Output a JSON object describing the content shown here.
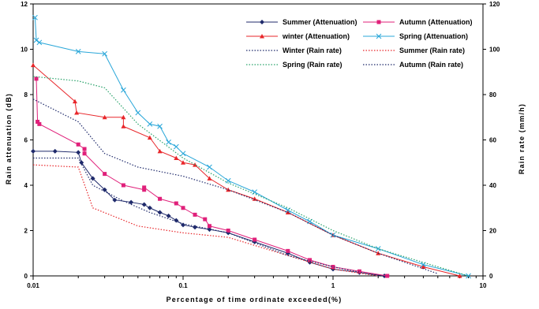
{
  "chart_data": {
    "type": "line",
    "xscale": "log",
    "xlabel": "Percentage of time ordinate exceeded(%)",
    "ylabel_left": "Rain attenuation (dB)",
    "ylabel_right": "Rain rate (mm/h)",
    "xlim": [
      0.01,
      10
    ],
    "ylim_left": [
      0,
      12
    ],
    "ylim_right": [
      0,
      120
    ],
    "x_ticks": [
      "0.01",
      "0.1",
      "1",
      "10"
    ],
    "y_left_ticks": [
      "0",
      "2",
      "4",
      "6",
      "8",
      "10",
      "12"
    ],
    "y_right_ticks": [
      "0",
      "20",
      "40",
      "60",
      "80",
      "100",
      "120"
    ],
    "legend_position": "top-right",
    "grid": false,
    "series": [
      {
        "name": "Summer (Attenuation)",
        "axis": "left",
        "color": "#1f2a6b",
        "marker": "diamond",
        "dash": "solid",
        "x": [
          0.01,
          0.014,
          0.02,
          0.021,
          0.025,
          0.03,
          0.035,
          0.045,
          0.055,
          0.06,
          0.07,
          0.08,
          0.09,
          0.1,
          0.12,
          0.15,
          0.2,
          0.3,
          0.5,
          0.7,
          1.0,
          1.5,
          2.2
        ],
        "y": [
          5.5,
          5.5,
          5.45,
          5.0,
          4.3,
          3.8,
          3.35,
          3.25,
          3.15,
          3.0,
          2.8,
          2.65,
          2.45,
          2.25,
          2.15,
          2.05,
          1.9,
          1.5,
          1.0,
          0.6,
          0.3,
          0.15,
          0.0
        ]
      },
      {
        "name": "Autumn (Attenuation)",
        "axis": "left",
        "color": "#e0207a",
        "marker": "square",
        "dash": "solid",
        "x": [
          0.0105,
          0.0107,
          0.011,
          0.02,
          0.022,
          0.022,
          0.03,
          0.04,
          0.055,
          0.055,
          0.07,
          0.09,
          0.1,
          0.12,
          0.14,
          0.15,
          0.2,
          0.3,
          0.5,
          0.7,
          1.0,
          1.5,
          2.3
        ],
        "y": [
          8.7,
          6.8,
          6.7,
          5.8,
          5.6,
          5.4,
          4.5,
          4.0,
          3.8,
          3.9,
          3.4,
          3.2,
          3.0,
          2.7,
          2.5,
          2.2,
          2.0,
          1.6,
          1.1,
          0.7,
          0.4,
          0.2,
          0.0
        ]
      },
      {
        "name": "winter (Attenuation)",
        "axis": "left",
        "color": "#e8262a",
        "marker": "triangle",
        "dash": "solid",
        "x": [
          0.01,
          0.019,
          0.0195,
          0.03,
          0.04,
          0.04,
          0.06,
          0.07,
          0.09,
          0.1,
          0.12,
          0.15,
          0.2,
          0.3,
          0.5,
          1.0,
          2.0,
          4.0,
          7.0
        ],
        "y": [
          9.3,
          7.7,
          7.2,
          7.0,
          7.0,
          6.6,
          6.1,
          5.5,
          5.2,
          5.0,
          4.9,
          4.3,
          3.8,
          3.4,
          2.8,
          1.8,
          1.0,
          0.4,
          0.0
        ]
      },
      {
        "name": "Spring (Attenuation)",
        "axis": "left",
        "color": "#2aa7d9",
        "marker": "x",
        "dash": "solid",
        "x": [
          0.0103,
          0.0105,
          0.011,
          0.02,
          0.03,
          0.04,
          0.05,
          0.06,
          0.07,
          0.08,
          0.09,
          0.1,
          0.15,
          0.2,
          0.3,
          0.5,
          0.7,
          1.0,
          2.0,
          4.0,
          8.0
        ],
        "y": [
          11.4,
          10.4,
          10.3,
          9.9,
          9.8,
          8.2,
          7.2,
          6.7,
          6.6,
          5.9,
          5.7,
          5.4,
          4.8,
          4.2,
          3.7,
          2.9,
          2.4,
          1.8,
          1.2,
          0.5,
          0.0
        ]
      },
      {
        "name": "Winter (Rain rate)",
        "axis": "right",
        "color": "#1f2a6b",
        "marker": "none",
        "dash": "dotted",
        "x": [
          0.01,
          0.02,
          0.03,
          0.05,
          0.1,
          0.2,
          0.5,
          1.0,
          2.0,
          5.0
        ],
        "y": [
          78,
          68,
          54,
          48,
          44,
          38,
          28,
          18,
          10,
          1
        ]
      },
      {
        "name": "Summer (Rain rate)",
        "axis": "right",
        "color": "#e8262a",
        "marker": "none",
        "dash": "dotted",
        "x": [
          0.01,
          0.02,
          0.025,
          0.05,
          0.1,
          0.2,
          0.5,
          1.0,
          2.0
        ],
        "y": [
          49,
          48,
          30,
          22,
          19,
          17,
          9,
          3,
          0
        ]
      },
      {
        "name": "Spring (Rain rate)",
        "axis": "right",
        "color": "#2aa36b",
        "marker": "none",
        "dash": "dotted",
        "x": [
          0.01,
          0.02,
          0.03,
          0.05,
          0.1,
          0.2,
          0.5,
          1.0,
          2.0,
          5.0,
          8.0
        ],
        "y": [
          88,
          86,
          83,
          67,
          52,
          41,
          30,
          20,
          12,
          4,
          0
        ]
      },
      {
        "name": "Autumn (Rain rate)",
        "axis": "right",
        "color": "#1f2a6b",
        "marker": "none",
        "dash": "dotted",
        "x": [
          0.01,
          0.02,
          0.025,
          0.04,
          0.06,
          0.1,
          0.2,
          0.5,
          1.0,
          2.0
        ],
        "y": [
          52,
          52,
          40,
          33,
          28,
          23,
          19,
          9,
          4,
          0
        ]
      }
    ]
  }
}
